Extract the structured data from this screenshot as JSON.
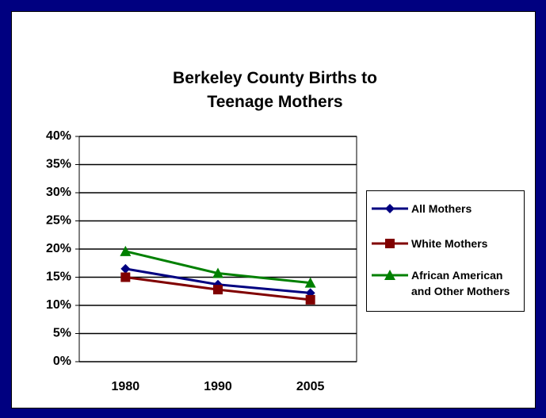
{
  "chart_data": {
    "type": "line",
    "title": "Berkeley County Births to Teenage Mothers",
    "categories": [
      "1980",
      "1990",
      "2005"
    ],
    "series": [
      {
        "name": "All Mothers",
        "color": "#000080",
        "marker": "diamond",
        "values": [
          16.5,
          13.7,
          12.2
        ]
      },
      {
        "name": "White Mothers",
        "color": "#800000",
        "marker": "square",
        "values": [
          15.0,
          12.8,
          11.0
        ]
      },
      {
        "name": "African American and Other Mothers",
        "color": "#008000",
        "marker": "triangle",
        "values": [
          19.6,
          15.7,
          14.0
        ]
      }
    ],
    "ylim": [
      0,
      40
    ],
    "yticks": [
      {
        "value": 0,
        "label": "0%"
      },
      {
        "value": 5,
        "label": "5%"
      },
      {
        "value": 10,
        "label": "10%"
      },
      {
        "value": 15,
        "label": "15%"
      },
      {
        "value": 20,
        "label": "20%"
      },
      {
        "value": 25,
        "label": "25%"
      },
      {
        "value": 30,
        "label": "30%"
      },
      {
        "value": 35,
        "label": "35%"
      },
      {
        "value": 40,
        "label": "40%"
      }
    ],
    "grid": true,
    "legend": "right"
  }
}
